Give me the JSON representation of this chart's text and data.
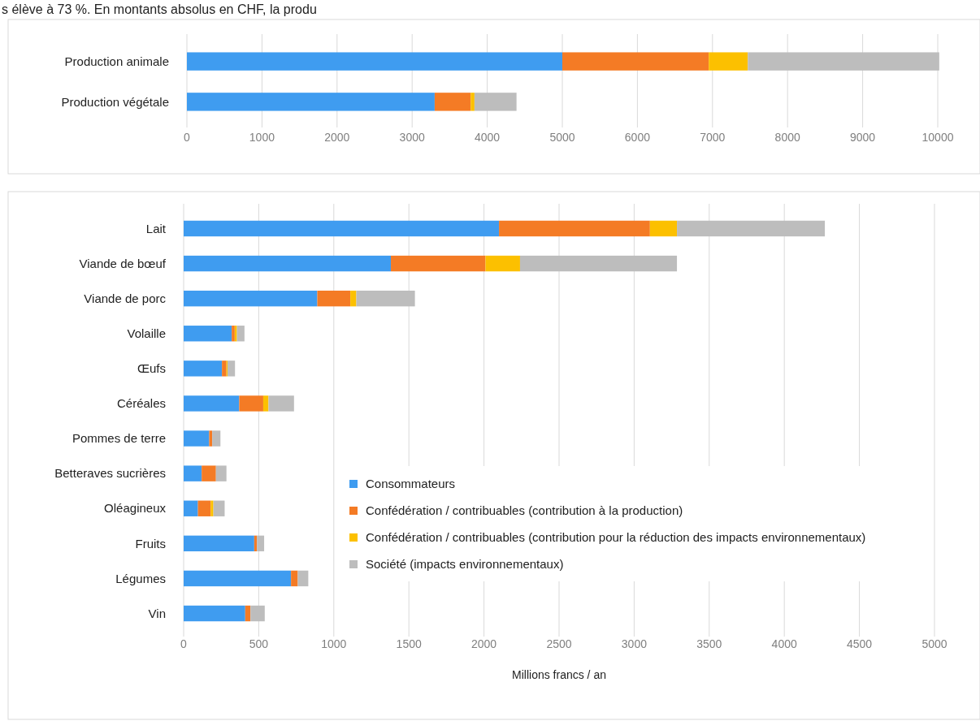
{
  "chart_data": [
    {
      "type": "bar",
      "orientation": "horizontal",
      "stacked": true,
      "grid": "x",
      "legend": false,
      "annotations": [
        "s élève à 73 %. En montants absolus en CHF, la produ"
      ],
      "categories": [
        "Production animale",
        "Production végétale"
      ],
      "xlim": [
        0,
        10000
      ],
      "xticks": [
        0,
        1000,
        2000,
        3000,
        4000,
        5000,
        6000,
        7000,
        8000,
        9000,
        10000
      ],
      "series": [
        {
          "color": "#3f9cf0",
          "values": [
            5000,
            3300
          ]
        },
        {
          "color": "#f47b25",
          "values": [
            1950,
            480
          ]
        },
        {
          "color": "#fcc000",
          "values": [
            520,
            50
          ]
        },
        {
          "color": "#bdbdbd",
          "values": [
            2550,
            560
          ]
        }
      ]
    },
    {
      "type": "bar",
      "orientation": "horizontal",
      "stacked": true,
      "grid": "x",
      "legend": "bottom right",
      "xlabel": "Millions francs / an",
      "categories": [
        "Lait",
        "Viande de bœuf",
        "Viande de porc",
        "Volaille",
        "Œufs",
        "Céréales",
        "Pommes de terre",
        "Betteraves sucrières",
        "Oléagineux",
        "Fruits",
        "Légumes",
        "Vin"
      ],
      "xlim": [
        0,
        5000
      ],
      "xticks": [
        0,
        500,
        1000,
        1500,
        2000,
        2500,
        3000,
        3500,
        4000,
        4500,
        5000
      ],
      "series": [
        {
          "name": "Consommateurs",
          "color": "#3f9cf0",
          "values": [
            2100,
            1380,
            890,
            320,
            255,
            370,
            170,
            120,
            95,
            470,
            715,
            410
          ]
        },
        {
          "name": "Confédération / contribuables (contribution à la production)",
          "color": "#f47b25",
          "values": [
            1005,
            630,
            220,
            20,
            30,
            160,
            20,
            95,
            85,
            18,
            45,
            35
          ]
        },
        {
          "name": "Confédération / contribuables (contribution pour la réduction des impacts environnementaux)",
          "color": "#fcc000",
          "values": [
            180,
            230,
            40,
            15,
            7,
            35,
            0,
            0,
            18,
            0,
            0,
            0
          ]
        },
        {
          "name": "Société (impacts environnementaux)",
          "color": "#bdbdbd",
          "values": [
            985,
            1045,
            390,
            50,
            50,
            170,
            55,
            70,
            75,
            48,
            70,
            95
          ]
        }
      ]
    }
  ]
}
